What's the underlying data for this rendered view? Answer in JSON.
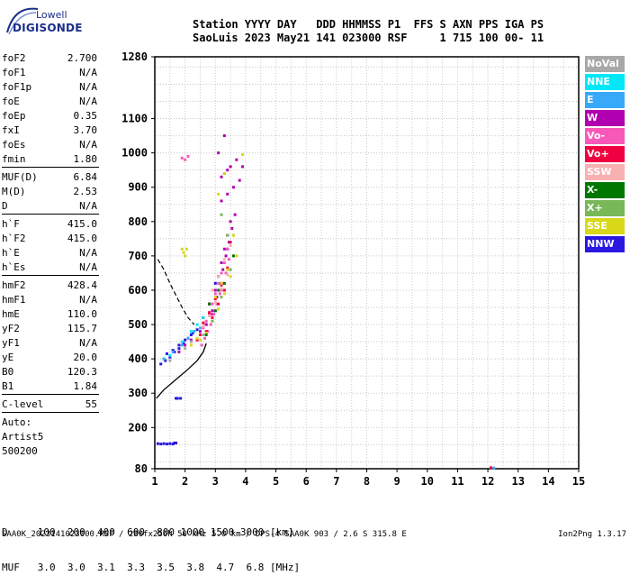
{
  "logo": {
    "top": "Lowell",
    "bottom": "DIGISONDE"
  },
  "header": {
    "line1": "Station YYYY DAY   DDD HHMMSS P1  FFS S AXN PPS IGA PS",
    "line2": "SaoLuis 2023 May21 141 023000 RSF     1 715 100 00- 11"
  },
  "params": [
    {
      "label": "foF2",
      "value": "2.700"
    },
    {
      "label": "foF1",
      "value": "N/A"
    },
    {
      "label": "foF1p",
      "value": "N/A"
    },
    {
      "label": "foE",
      "value": "N/A"
    },
    {
      "label": "foEp",
      "value": "0.35"
    },
    {
      "label": "fxI",
      "value": "3.70"
    },
    {
      "label": "foEs",
      "value": "N/A"
    },
    {
      "label": "fmin",
      "value": "1.80"
    },
    {
      "label": "MUF(D)",
      "value": "6.84",
      "sep": true
    },
    {
      "label": "M(D)",
      "value": "2.53"
    },
    {
      "label": "D",
      "value": "N/A"
    },
    {
      "label": "h`F",
      "value": "415.0",
      "sep": true
    },
    {
      "label": "h`F2",
      "value": "415.0"
    },
    {
      "label": "h`E",
      "value": "N/A"
    },
    {
      "label": "h`Es",
      "value": "N/A"
    },
    {
      "label": "hmF2",
      "value": "428.4",
      "sep": true
    },
    {
      "label": "hmF1",
      "value": "N/A"
    },
    {
      "label": "hmE",
      "value": "110.0"
    },
    {
      "label": "yF2",
      "value": "115.7"
    },
    {
      "label": "yF1",
      "value": "N/A"
    },
    {
      "label": "yE",
      "value": "20.0"
    },
    {
      "label": "B0",
      "value": "120.3"
    },
    {
      "label": "B1",
      "value": "1.84"
    },
    {
      "label": "C-level",
      "value": "55",
      "sep": true
    },
    {
      "label": "Auto:",
      "value": "",
      "sep": true
    },
    {
      "label": "Artist5",
      "value": ""
    },
    {
      "label": "500200",
      "value": ""
    }
  ],
  "legend": [
    {
      "label": "NoVal",
      "color": "#a8a8a8"
    },
    {
      "label": "NNE",
      "color": "#00e8f8"
    },
    {
      "label": "E",
      "color": "#38a8f8"
    },
    {
      "label": "W",
      "color": "#b000b0"
    },
    {
      "label": "Vo-",
      "color": "#f858b8"
    },
    {
      "label": "Vo+",
      "color": "#f00040"
    },
    {
      "label": "SSW",
      "color": "#f8b0b0"
    },
    {
      "label": "X-",
      "color": "#007800"
    },
    {
      "label": "X+",
      "color": "#78b858"
    },
    {
      "label": "SSE",
      "color": "#d8d818"
    },
    {
      "label": "NNW",
      "color": "#2818e0"
    }
  ],
  "footer": {
    "line1": "D     100  200  400  600  800 1000 1500 3000 [km]",
    "line2": "MUF   3.0  3.0  3.1  3.3  3.5  3.8  4.7  6.8 [MHz]",
    "line3": "SAA0K_2023141023000.RSF / 280fx256h 50 kHz 5.0 km / DPS-4 SAA0K 903 / 2.6 S 315.8 E",
    "version": "Ion2Png 1.3.17"
  },
  "chart_data": {
    "type": "scatter",
    "title": "",
    "xlabel": "",
    "ylabel": "",
    "xlim": [
      1,
      15
    ],
    "ylim": [
      80,
      1280
    ],
    "x_ticks": [
      1,
      2,
      3,
      4,
      5,
      6,
      7,
      8,
      9,
      10,
      11,
      12,
      13,
      14,
      15
    ],
    "y_ticks": [
      80,
      200,
      300,
      400,
      500,
      600,
      700,
      800,
      900,
      1000,
      1100,
      1280
    ],
    "grid": true,
    "profile_curve": {
      "name": "",
      "color": "#000000",
      "x": [
        1.05,
        1.3,
        1.7,
        2.1,
        2.4,
        2.6,
        2.7
      ],
      "y": [
        285,
        310,
        340,
        370,
        395,
        420,
        445
      ]
    },
    "trace_dashed": {
      "name": "",
      "color": "#000000",
      "x": [
        1.1,
        1.3,
        1.5,
        1.7,
        1.9,
        2.1,
        2.3
      ],
      "y": [
        690,
        660,
        620,
        585,
        550,
        520,
        500
      ]
    },
    "echo_clusters": [
      {
        "name": "NNW",
        "color": "#2818e0",
        "x": [
          1.2,
          1.35,
          1.5,
          1.65,
          1.8,
          1.95,
          2.1,
          2.25,
          2.4,
          1.4,
          1.6,
          1.8,
          2.0,
          2.2,
          1.7,
          1.75,
          1.85,
          1.1,
          1.2,
          1.3,
          1.4,
          1.5,
          1.6,
          1.65,
          1.7,
          2.6,
          2.8,
          3.0,
          3.2,
          3.4,
          3.6
        ],
        "y": [
          385,
          395,
          405,
          420,
          430,
          445,
          460,
          475,
          485,
          415,
          425,
          440,
          455,
          470,
          285,
          285,
          285,
          153,
          152,
          153,
          152,
          153,
          152,
          155,
          155,
          520,
          560,
          620,
          680,
          720,
          760
        ]
      },
      {
        "name": "W",
        "color": "#b000b0",
        "x": [
          2.6,
          2.8,
          3.0,
          3.1,
          3.2,
          3.3,
          3.4,
          3.5,
          2.7,
          2.9,
          3.05,
          3.15,
          3.25,
          3.35,
          3.45,
          3.55,
          3.65,
          3.2,
          3.4,
          3.6,
          3.8,
          3.3,
          3.5,
          3.7,
          3.1,
          3.3,
          2.5,
          2.7,
          2.9,
          1.8,
          2.0,
          2.2,
          3.2,
          3.4,
          3.9
        ],
        "y": [
          520,
          560,
          600,
          640,
          680,
          720,
          760,
          800,
          500,
          540,
          580,
          620,
          660,
          700,
          740,
          780,
          820,
          860,
          880,
          900,
          920,
          940,
          960,
          980,
          1000,
          1050,
          480,
          500,
          530,
          420,
          440,
          455,
          930,
          950,
          960
        ]
      },
      {
        "name": "Vo-",
        "color": "#f858b8",
        "x": [
          2.5,
          2.6,
          2.7,
          2.8,
          2.9,
          3.0,
          3.1,
          3.2,
          3.3,
          3.4,
          2.55,
          2.65,
          2.75,
          2.85,
          2.95,
          3.05,
          3.15,
          3.25,
          3.35,
          3.45,
          3.0,
          3.2,
          1.9,
          2.0,
          2.1
        ],
        "y": [
          470,
          490,
          510,
          530,
          560,
          590,
          620,
          650,
          680,
          720,
          440,
          460,
          480,
          500,
          530,
          560,
          590,
          620,
          650,
          690,
          540,
          600,
          985,
          980,
          990
        ]
      },
      {
        "name": "Vo+",
        "color": "#f00040",
        "x": [
          2.6,
          2.8,
          3.0,
          3.2,
          3.4,
          2.7,
          2.9,
          3.1,
          3.3,
          2.4,
          2.5,
          3.5,
          12.1
        ],
        "y": [
          505,
          535,
          575,
          615,
          665,
          480,
          520,
          560,
          600,
          455,
          470,
          740,
          83
        ]
      },
      {
        "name": "SSE",
        "color": "#d8d818",
        "x": [
          2.5,
          2.7,
          2.9,
          3.1,
          3.3,
          3.5,
          3.7,
          3.0,
          3.2,
          3.4,
          3.6,
          3.9,
          2.2,
          2.4,
          2.0,
          1.9,
          1.95,
          2.05,
          3.1,
          3.3
        ],
        "y": [
          455,
          475,
          510,
          545,
          590,
          640,
          700,
          580,
          620,
          660,
          760,
          995,
          440,
          460,
          700,
          720,
          710,
          720,
          880,
          940
        ]
      },
      {
        "name": "SSW",
        "color": "#f8b0b0",
        "x": [
          2.6,
          2.8,
          3.0,
          3.2,
          3.4,
          2.9,
          3.1,
          3.3,
          3.5
        ],
        "y": [
          495,
          525,
          565,
          605,
          645,
          600,
          640,
          690,
          730
        ]
      },
      {
        "name": "X-",
        "color": "#007800",
        "x": [
          2.7,
          3.0,
          3.3,
          3.6,
          2.8,
          3.1
        ],
        "y": [
          470,
          540,
          620,
          700,
          560,
          600
        ]
      },
      {
        "name": "X+",
        "color": "#78b858",
        "x": [
          2.9,
          3.2,
          3.5,
          3.4,
          3.2
        ],
        "y": [
          510,
          580,
          660,
          760,
          820
        ]
      },
      {
        "name": "NNE",
        "color": "#00e8f8",
        "x": [
          2.2,
          2.4,
          2.6,
          1.3,
          1.5,
          1.9
        ],
        "y": [
          480,
          500,
          520,
          400,
          410,
          450
        ]
      },
      {
        "name": "E",
        "color": "#38a8f8",
        "x": [
          1.3,
          1.6,
          1.9,
          2.1,
          2.3,
          2.5,
          12.2
        ],
        "y": [
          400,
          420,
          440,
          460,
          480,
          490,
          82
        ]
      },
      {
        "name": "NoVal",
        "color": "#a8a8a8",
        "x": [
          1.5,
          2.0,
          2.2,
          2.6
        ],
        "y": [
          395,
          430,
          450,
          470
        ]
      }
    ]
  }
}
